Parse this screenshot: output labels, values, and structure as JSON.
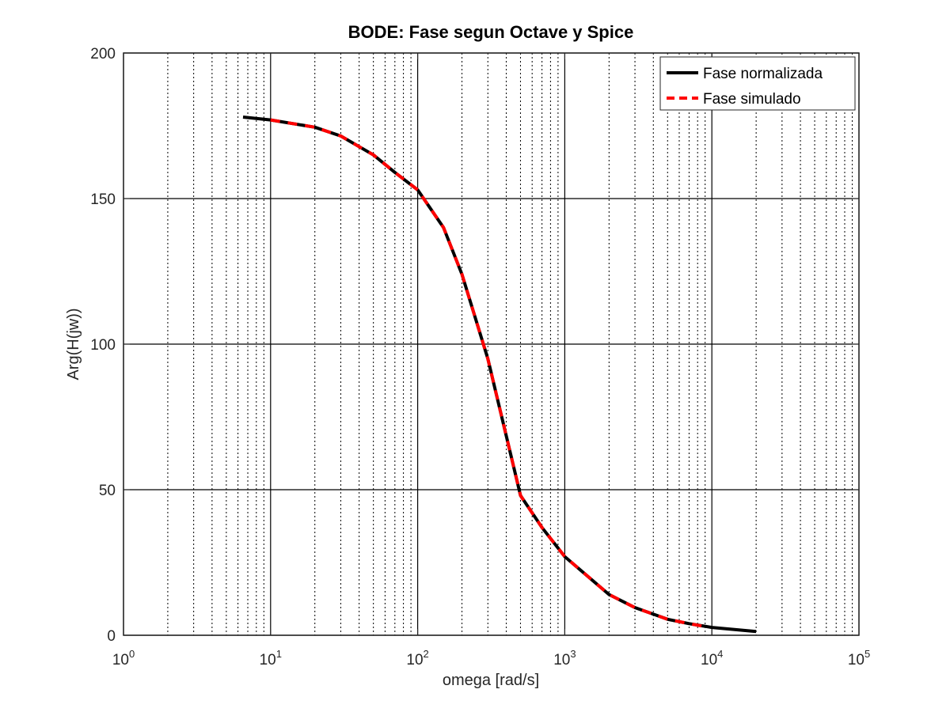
{
  "chart_data": {
    "type": "line",
    "title": "BODE: Fase segun Octave y Spice",
    "xlabel": "omega [rad/s]",
    "ylabel": "Arg(H(jw))",
    "xscale": "log",
    "xlim": [
      1,
      100000
    ],
    "ylim": [
      0,
      200
    ],
    "grid": true,
    "legend_position": "top-right",
    "x_ticks": [
      {
        "base": "10",
        "exp": "0",
        "value": 1
      },
      {
        "base": "10",
        "exp": "1",
        "value": 10
      },
      {
        "base": "10",
        "exp": "2",
        "value": 100
      },
      {
        "base": "10",
        "exp": "3",
        "value": 1000
      },
      {
        "base": "10",
        "exp": "4",
        "value": 10000
      },
      {
        "base": "10",
        "exp": "5",
        "value": 100000
      }
    ],
    "y_ticks": [
      "0",
      "50",
      "100",
      "150",
      "200"
    ],
    "series": [
      {
        "name": "Fase normalizada",
        "color": "#000000",
        "style": "solid",
        "x": [
          6.5,
          10,
          20,
          30,
          50,
          70,
          100,
          150,
          200,
          300,
          500,
          700,
          1000,
          2000,
          3000,
          5000,
          7000,
          10000,
          20000
        ],
        "y": [
          178,
          177,
          174.5,
          171.5,
          165,
          159,
          153,
          140,
          124,
          95,
          48,
          37,
          27,
          14,
          9.5,
          5.5,
          4,
          2.7,
          1.3
        ]
      },
      {
        "name": "Fase simulado",
        "color": "#ff0000",
        "style": "dashed",
        "x": [
          10,
          20,
          30,
          50,
          70,
          100,
          150,
          200,
          300,
          500,
          700,
          1000,
          2000,
          3000,
          5000,
          7000,
          9000
        ],
        "y": [
          177,
          174.5,
          171.5,
          165,
          159,
          153,
          140,
          124,
          95,
          48,
          37,
          27,
          14,
          9.5,
          5.5,
          4,
          3
        ]
      }
    ]
  }
}
